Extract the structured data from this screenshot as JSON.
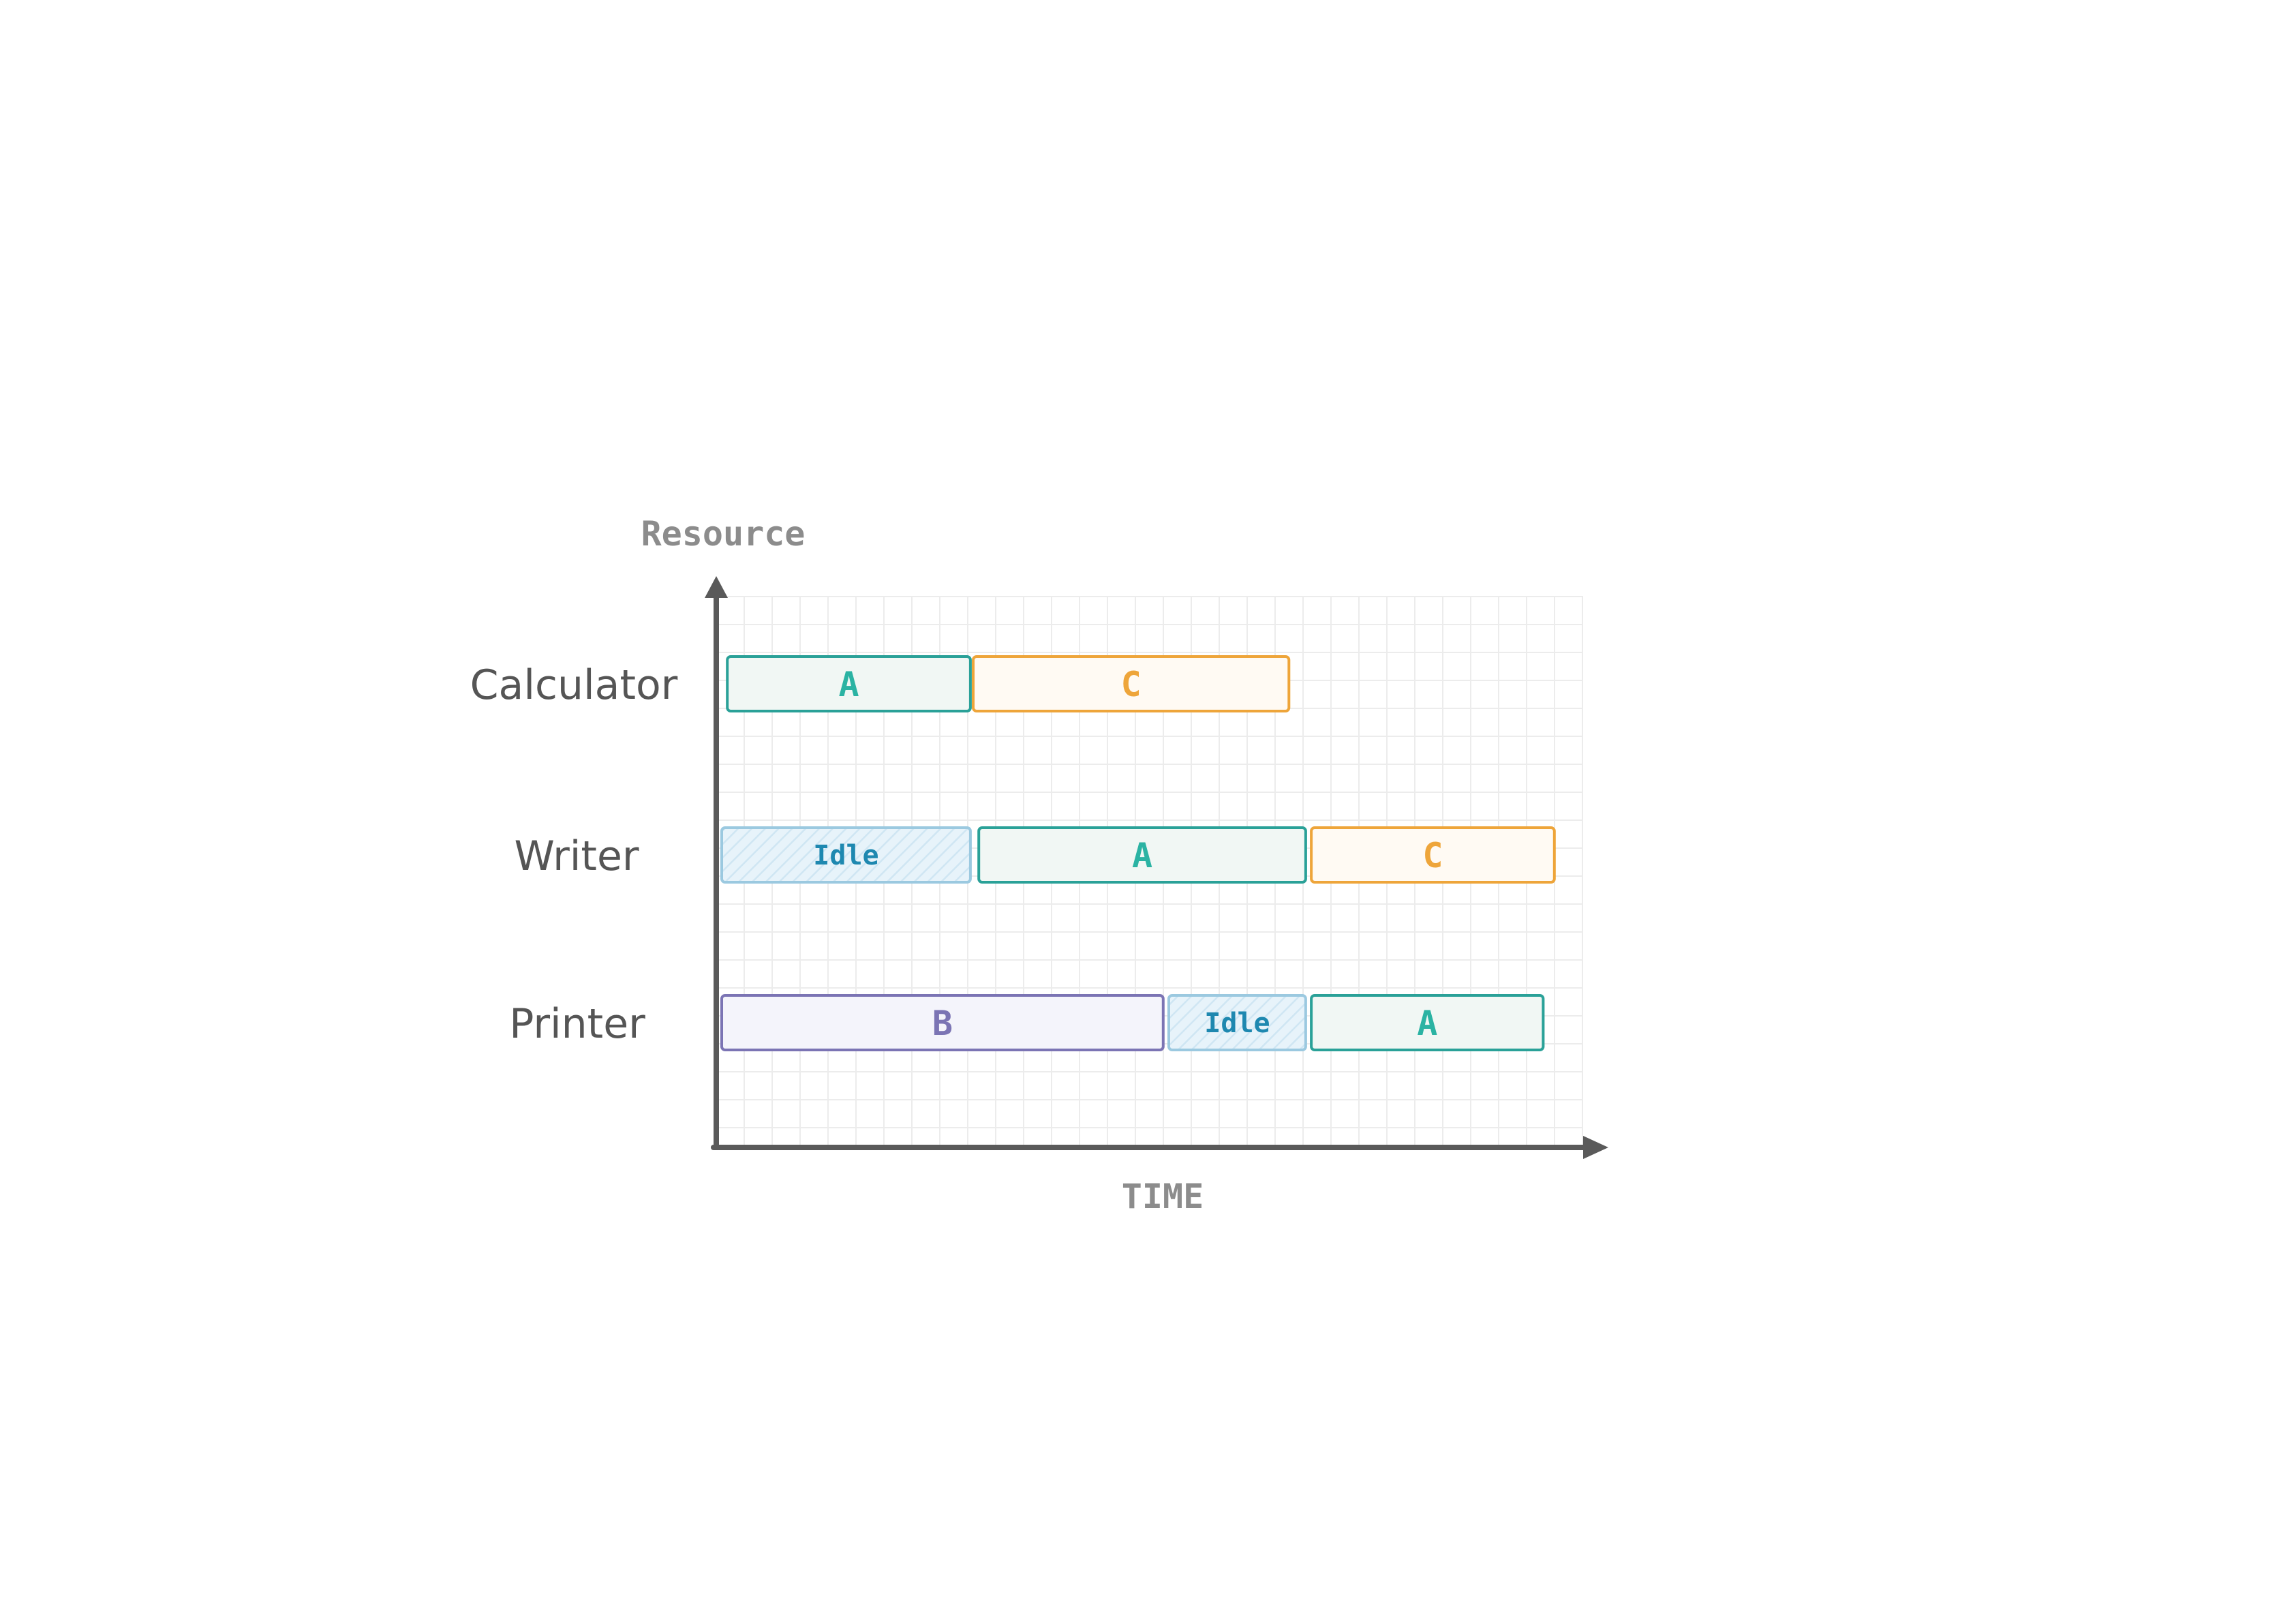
{
  "chart_data": {
    "type": "gantt",
    "ylabel": "Resource",
    "xlabel": "TIME",
    "grid": true,
    "rows": [
      {
        "name": "Calculator",
        "tasks": [
          {
            "label": "A",
            "kind": "A",
            "start": 0.2,
            "end": 8.9
          },
          {
            "label": "C",
            "kind": "C",
            "start": 9.0,
            "end": 20.3
          }
        ]
      },
      {
        "name": "Writer",
        "tasks": [
          {
            "label": "Idle",
            "kind": "Idle",
            "start": 0.0,
            "end": 8.9
          },
          {
            "label": "A",
            "kind": "A",
            "start": 9.2,
            "end": 20.9
          },
          {
            "label": "C",
            "kind": "C",
            "start": 21.1,
            "end": 29.8
          }
        ]
      },
      {
        "name": "Printer",
        "tasks": [
          {
            "label": "B",
            "kind": "B",
            "start": 0.0,
            "end": 15.8
          },
          {
            "label": "Idle",
            "kind": "Idle",
            "start": 16.0,
            "end": 20.9
          },
          {
            "label": "A",
            "kind": "A",
            "start": 21.1,
            "end": 29.4
          }
        ]
      }
    ],
    "colors": {
      "A": {
        "stroke": "#2aa198",
        "fill": "#f1f7f4",
        "text": "#2bb3a3"
      },
      "B": {
        "stroke": "#7b74b4",
        "fill": "#f4f4fb",
        "text": "#7b74b4"
      },
      "C": {
        "stroke": "#eea53a",
        "fill": "#fffaf3",
        "text": "#eea53a"
      },
      "Idle": {
        "stroke": "#9bc9e0",
        "fill": "#e7f3fa",
        "text": "#1e88b0"
      }
    }
  }
}
